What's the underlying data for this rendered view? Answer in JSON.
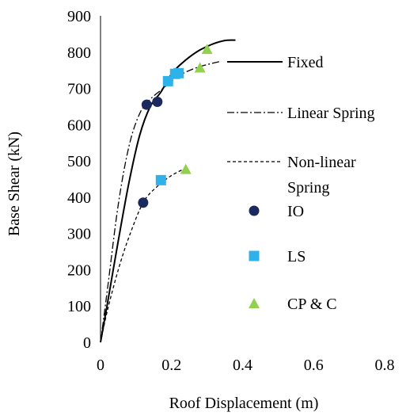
{
  "chart_data": {
    "type": "line",
    "title": "",
    "xlabel": "Roof Displacement (m)",
    "ylabel": "Base Shear (kN)",
    "xlim": [
      0,
      0.8
    ],
    "ylim": [
      0,
      900
    ],
    "x_ticks": [
      0,
      0.2,
      0.4,
      0.6,
      0.8
    ],
    "x_tick_labels": [
      "0",
      "0.2",
      "0.4",
      "0.6",
      "0.8"
    ],
    "y_ticks": [
      0,
      100,
      200,
      300,
      400,
      500,
      600,
      700,
      800,
      900
    ],
    "y_tick_labels": [
      "0",
      "100",
      "200",
      "300",
      "400",
      "500",
      "600",
      "700",
      "800",
      "900"
    ],
    "grid": false,
    "legend_position": "right",
    "series": [
      {
        "name": "Fixed",
        "style": "solid",
        "color": "#000000",
        "x": [
          0,
          0.02,
          0.05,
          0.08,
          0.11,
          0.14,
          0.17,
          0.2,
          0.23,
          0.27,
          0.31,
          0.35,
          0.38
        ],
        "y": [
          0,
          110,
          280,
          440,
          570,
          650,
          690,
          740,
          770,
          800,
          820,
          832,
          833
        ]
      },
      {
        "name": "Linear Spring",
        "style": "dashdot",
        "color": "#000000",
        "x": [
          0,
          0.02,
          0.05,
          0.08,
          0.11,
          0.14,
          0.17,
          0.2,
          0.23,
          0.27,
          0.31,
          0.34
        ],
        "y": [
          0,
          150,
          380,
          540,
          630,
          670,
          695,
          720,
          740,
          757,
          768,
          775
        ]
      },
      {
        "name": "Non-linear Spring",
        "style": "dashed",
        "color": "#000000",
        "x": [
          0,
          0.02,
          0.05,
          0.08,
          0.12,
          0.16,
          0.2,
          0.24
        ],
        "y": [
          0,
          90,
          200,
          290,
          385,
          430,
          460,
          480
        ]
      },
      {
        "name": "IO",
        "style": "marker",
        "marker": "circle",
        "color": "#1b2a5e",
        "x": [
          0.12,
          0.13,
          0.16
        ],
        "y": [
          385,
          655,
          663
        ]
      },
      {
        "name": "LS",
        "style": "marker",
        "marker": "square",
        "color": "#2fb2ea",
        "x": [
          0.17,
          0.19,
          0.21,
          0.22
        ],
        "y": [
          447,
          720,
          740,
          742
        ]
      },
      {
        "name": "CP & C",
        "style": "marker",
        "marker": "triangle",
        "color": "#92d050",
        "x": [
          0.24,
          0.28,
          0.3
        ],
        "y": [
          477,
          757,
          808
        ]
      }
    ]
  }
}
